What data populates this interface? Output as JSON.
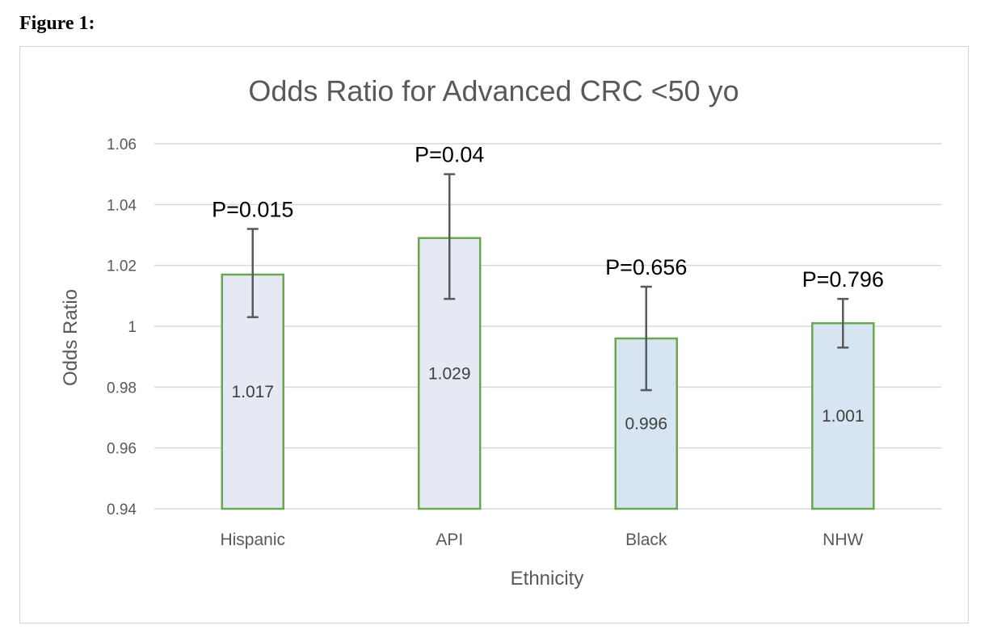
{
  "figure_label": "Figure 1:",
  "chart_data": {
    "type": "bar",
    "title": "Odds Ratio for Advanced CRC <50 yo",
    "xlabel": "Ethnicity",
    "ylabel": "Odds Ratio",
    "ylim": [
      0.94,
      1.06
    ],
    "yticks": [
      0.94,
      0.96,
      0.98,
      1,
      1.02,
      1.04,
      1.06
    ],
    "ytick_labels": [
      "0.94",
      "0.96",
      "0.98",
      "1",
      "1.02",
      "1.04",
      "1.06"
    ],
    "grid": "horizontal",
    "categories": [
      "Hispanic",
      "API",
      "Black",
      "NHW"
    ],
    "values": [
      1.017,
      1.029,
      0.996,
      1.001
    ],
    "data_labels": [
      "1.017",
      "1.029",
      "0.996",
      "1.001"
    ],
    "error_low": [
      1.003,
      1.009,
      0.979,
      0.993
    ],
    "error_high": [
      1.032,
      1.05,
      1.013,
      1.009
    ],
    "annotations": [
      "P=0.015",
      "P=0.04",
      "P=0.656",
      "P=0.796"
    ],
    "colors": {
      "bar_fills": [
        "#e4e9f4",
        "#e4e9f4",
        "#d6e5f1",
        "#d6e5f1"
      ],
      "bar_stroke": "#6aa84f",
      "error_bar": "#595959",
      "grid": "#d9d9d9"
    }
  }
}
